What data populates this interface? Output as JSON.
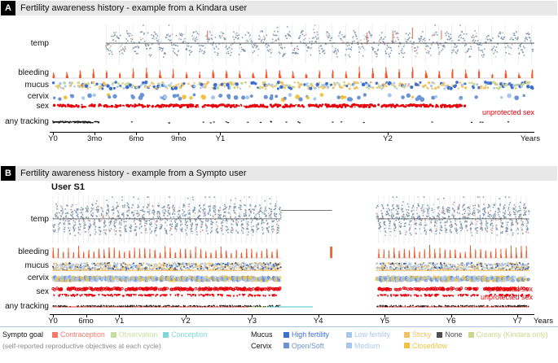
{
  "figure": {
    "panel_a_letter": "A",
    "panel_b_letter": "B"
  },
  "colors": {
    "contraception": "#f4796b",
    "observation": "#c9dfa0",
    "conception": "#7fd8d8",
    "mucus_high": "#3d6fd1",
    "mucus_low": "#a9c6ec",
    "mucus_sticky": "#f2c066",
    "mucus_none": "#4f4f4f",
    "mucus_creamy": "#c9d98c",
    "cervix_open": "#6b93d6",
    "cervix_medium": "#a9c6ec",
    "cervix_closed": "#f0c23e",
    "bleeding": "#f0592b",
    "temp_dot": "#7d95ac",
    "temp_dot_light": "#bcc9d6",
    "temp_dot_warm": "#e2998a",
    "temp_spike": "#e2704f",
    "temp_line": "#4a4a4a",
    "grid": "#e2e2e2",
    "baseline": "#b0b0b0",
    "sex_red": "#e8000b",
    "tracking_mark": "#1a1a1a",
    "annotation_red": "#e8000b",
    "axis": "#000000",
    "header_bg": "#e8e8e8",
    "divider": "#a9c6e0"
  },
  "chart_data": [
    {
      "type": "scatter",
      "subtype": "multi-row-timeline",
      "source_app": "Kindara",
      "title": "Fertility awareness history - example from a Kindara user",
      "rows": [
        "temp",
        "bleeding",
        "mucus",
        "cervix",
        "sex",
        "any tracking"
      ],
      "x_axis_label": "Years",
      "x_ticks": [
        {
          "label": "Y0",
          "day": 0
        },
        {
          "label": "3mo",
          "day": 91
        },
        {
          "label": "6mo",
          "day": 182
        },
        {
          "label": "9mo",
          "day": 274
        },
        {
          "label": "Y1",
          "day": 365
        },
        {
          "label": "Y2",
          "day": 730
        }
      ],
      "days_total": 1048,
      "cycle_length_days": 29,
      "tracked_segments": [
        [
          0,
          1048
        ]
      ],
      "temp_segments": [
        [
          115,
          1048
        ]
      ],
      "sex_segments": [
        [
          0,
          900
        ]
      ],
      "tracking_dense_segments": [
        [
          0,
          100
        ]
      ],
      "annotations": [
        {
          "text": "unprotected sex"
        }
      ]
    },
    {
      "type": "scatter",
      "subtype": "multi-row-timeline",
      "source_app": "Sympto",
      "user_label": "User S1",
      "title": "Fertility awareness history - example from a Sympto user",
      "rows": [
        "temp",
        "bleeding",
        "mucus",
        "cervix",
        "sex",
        "any tracking"
      ],
      "x_axis_label": "Years",
      "x_ticks": [
        {
          "label": "Y0",
          "day": 0
        },
        {
          "label": "6mo",
          "day": 182
        },
        {
          "label": "Y1",
          "day": 365
        },
        {
          "label": "Y2",
          "day": 730
        },
        {
          "label": "Y3",
          "day": 1095
        },
        {
          "label": "Y4",
          "day": 1460
        },
        {
          "label": "Y5",
          "day": 1825
        },
        {
          "label": "Y6",
          "day": 2190
        },
        {
          "label": "Y7",
          "day": 2555
        }
      ],
      "days_total": 2620,
      "cycle_length_days": 28,
      "tracked_segments": [
        [
          0,
          1255
        ],
        [
          1780,
          2620
        ]
      ],
      "temp_segments": [
        [
          0,
          1255
        ],
        [
          1780,
          2620
        ]
      ],
      "temp_line_extensions": [
        [
          1255,
          1535
        ]
      ],
      "goal_segments": [
        {
          "from": 0,
          "to": 1075,
          "goal": "Contraception"
        },
        {
          "from": 1075,
          "to": 1180,
          "goal": "Observation"
        },
        {
          "from": 1180,
          "to": 1430,
          "goal": "Conception"
        },
        {
          "from": 1780,
          "to": 2620,
          "goal": "Contraception"
        }
      ],
      "isolated_bleeding_days": [
        1528,
        1534
      ],
      "annotations": [
        {
          "text": "protected sex"
        },
        {
          "text": "unprotected sex"
        }
      ]
    }
  ],
  "legend": {
    "sympto_goal": {
      "label": "Sympto goal",
      "sublabel": "(self-reported reproductive objectives at each cycle)",
      "items": [
        {
          "label": "Contraception",
          "color_key": "contraception"
        },
        {
          "label": "Observation",
          "color_key": "observation"
        },
        {
          "label": "Conception",
          "color_key": "conception"
        }
      ]
    },
    "mucus": {
      "label": "Mucus",
      "items": [
        {
          "label": "High fertility",
          "color_key": "mucus_high"
        },
        {
          "label": "Low fertility",
          "color_key": "mucus_low"
        },
        {
          "label": "Sticky",
          "color_key": "mucus_sticky"
        },
        {
          "label": "None",
          "color_key": "mucus_none"
        },
        {
          "label": "Creamy (Kindara only)",
          "color_key": "mucus_creamy"
        }
      ]
    },
    "cervix": {
      "label": "Cervix",
      "items": [
        {
          "label": "Open/Soft",
          "color_key": "cervix_open"
        },
        {
          "label": "Medium",
          "color_key": "cervix_medium"
        },
        {
          "label": "Closed/low",
          "color_key": "cervix_closed"
        }
      ]
    }
  }
}
